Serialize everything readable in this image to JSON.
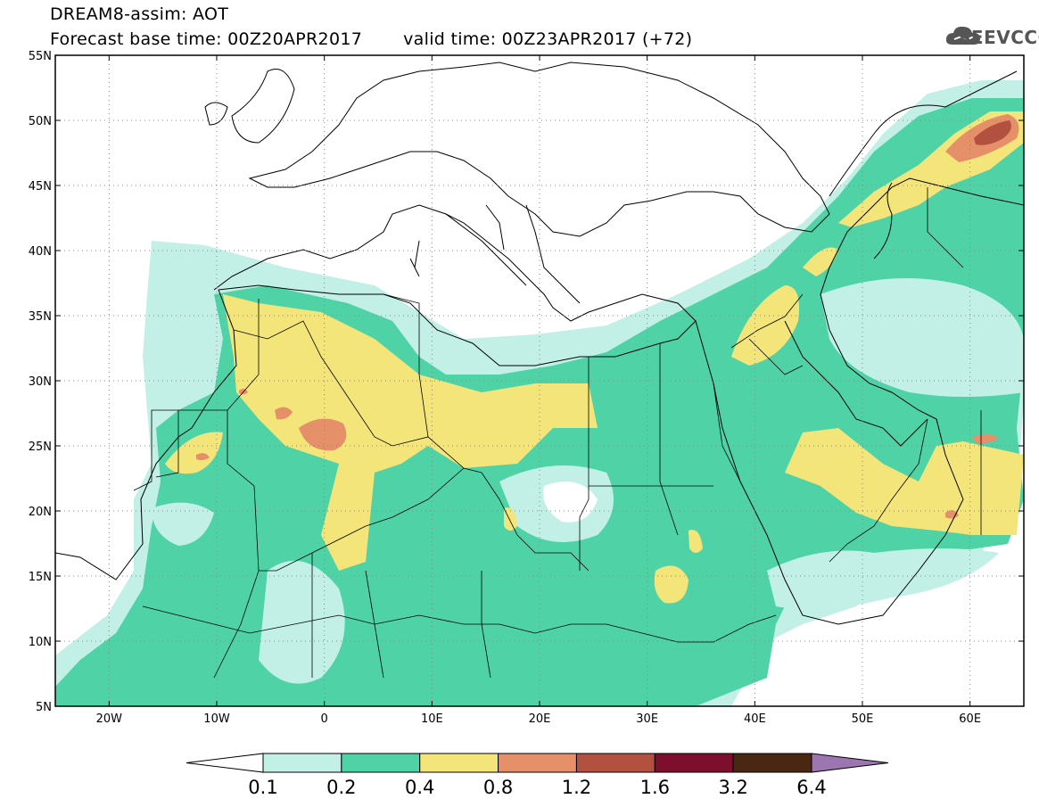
{
  "title": {
    "line1": "DREAM8-assim: AOT",
    "base_time": "Forecast base time: 00Z20APR2017",
    "valid_time": "valid time: 00Z23APR2017 (+72)"
  },
  "logo": {
    "text": "SEEVCCC",
    "icon": "cloud-icon"
  },
  "map": {
    "lon_range": [
      -25,
      65
    ],
    "lat_range": [
      5,
      55
    ],
    "lat_ticks": [
      "5N",
      "10N",
      "15N",
      "20N",
      "25N",
      "30N",
      "35N",
      "40N",
      "45N",
      "50N",
      "55N"
    ],
    "lon_ticks": [
      "20W",
      "10W",
      "0",
      "10E",
      "20E",
      "30E",
      "40E",
      "50E",
      "60E"
    ],
    "grid": "dotted"
  },
  "colorbar": {
    "labels": [
      "0.1",
      "0.2",
      "0.4",
      "0.8",
      "1.2",
      "1.6",
      "3.2",
      "6.4"
    ],
    "colors": [
      "#ffffff",
      "#c2f0e6",
      "#4fd3a6",
      "#f4e57a",
      "#e69069",
      "#b35140",
      "#7d0e2e",
      "#4a2712",
      "#9b76b0"
    ]
  },
  "colors": {
    "level_0_1": "#c2f0e6",
    "level_0_2": "#4fd3a6",
    "level_0_4": "#f4e57a",
    "level_0_8": "#e69069",
    "level_1_2": "#b35140",
    "land_border": "#000000"
  }
}
